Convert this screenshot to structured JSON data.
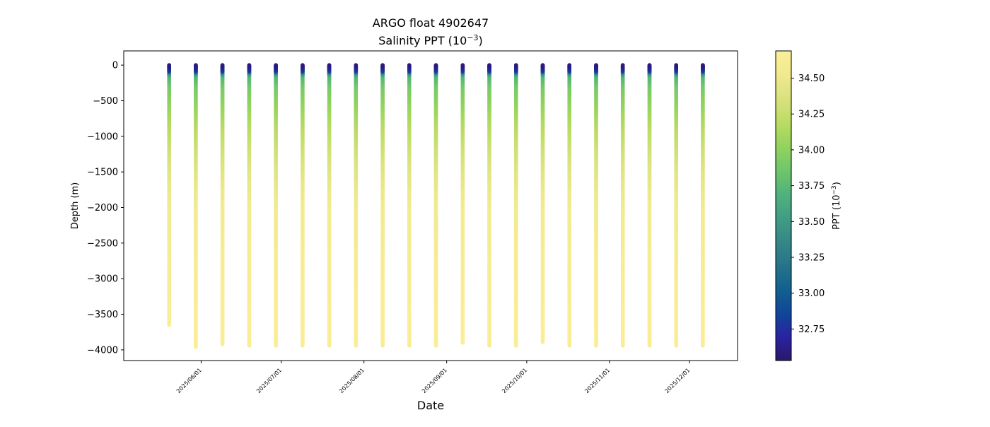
{
  "chart_data": {
    "type": "scatter",
    "title": "ARGO float 4902647",
    "subtitle_prefix": "Salinity PPT (10",
    "subtitle_exp": "−3",
    "subtitle_suffix": ")",
    "xlabel": "Date",
    "ylabel": "Depth (m)",
    "ylim": [
      -4150,
      200
    ],
    "yticks": [
      0,
      -500,
      -1000,
      -1500,
      -2000,
      -2500,
      -3000,
      -3500,
      -4000
    ],
    "ytick_labels": [
      "0",
      "−500",
      "−1000",
      "−1500",
      "−2000",
      "−2500",
      "−3000",
      "−3500",
      "−4000"
    ],
    "xlim": [
      "2025-05-03",
      "2025-12-19"
    ],
    "xticks": [
      "2025-06-01",
      "2025-07-01",
      "2025-08-01",
      "2025-09-01",
      "2025-10-01",
      "2025-11-01",
      "2025-12-01"
    ],
    "xtick_labels": [
      "2025/06/01",
      "2025/07/01",
      "2025/08/01",
      "2025/09/01",
      "2025/10/01",
      "2025/11/01",
      "2025/12/01"
    ],
    "grid": false,
    "colormap": "haline",
    "profiles": [
      {
        "date": "2025-05-20",
        "max_depth": -3650
      },
      {
        "date": "2025-05-30",
        "max_depth": -3960
      },
      {
        "date": "2025-06-09",
        "max_depth": -3920
      },
      {
        "date": "2025-06-19",
        "max_depth": -3940
      },
      {
        "date": "2025-06-29",
        "max_depth": -3940
      },
      {
        "date": "2025-07-09",
        "max_depth": -3940
      },
      {
        "date": "2025-07-19",
        "max_depth": -3940
      },
      {
        "date": "2025-07-29",
        "max_depth": -3940
      },
      {
        "date": "2025-08-08",
        "max_depth": -3940
      },
      {
        "date": "2025-08-18",
        "max_depth": -3940
      },
      {
        "date": "2025-08-28",
        "max_depth": -3940
      },
      {
        "date": "2025-09-07",
        "max_depth": -3900
      },
      {
        "date": "2025-09-17",
        "max_depth": -3940
      },
      {
        "date": "2025-09-27",
        "max_depth": -3940
      },
      {
        "date": "2025-10-07",
        "max_depth": -3890
      },
      {
        "date": "2025-10-17",
        "max_depth": -3940
      },
      {
        "date": "2025-10-27",
        "max_depth": -3940
      },
      {
        "date": "2025-11-06",
        "max_depth": -3940
      },
      {
        "date": "2025-11-16",
        "max_depth": -3940
      },
      {
        "date": "2025-11-26",
        "max_depth": -3940
      },
      {
        "date": "2025-12-06",
        "max_depth": -3940
      }
    ],
    "salinity_profile": {
      "depth": [
        0,
        -20,
        -50,
        -80,
        -110,
        -150,
        -300,
        -500,
        -800,
        -1200,
        -1600,
        -2000,
        -3000,
        -4000
      ],
      "salinity": [
        32.58,
        32.62,
        32.7,
        32.85,
        33.4,
        33.7,
        33.9,
        34.0,
        34.15,
        34.32,
        34.45,
        34.55,
        34.62,
        34.66
      ]
    },
    "colorbar": {
      "label_prefix": "PPT (10",
      "label_exp": "−3",
      "label_suffix": ")",
      "vmin": 32.53,
      "vmax": 34.69,
      "ticks": [
        32.75,
        33.0,
        33.25,
        33.5,
        33.75,
        34.0,
        34.25,
        34.5
      ],
      "tick_labels": [
        "32.75",
        "33.00",
        "33.25",
        "33.50",
        "33.75",
        "34.00",
        "34.25",
        "34.50"
      ],
      "colors": [
        "#29186b",
        "#2a23a0",
        "#0f4799",
        "#12618d",
        "#26748a",
        "#358888",
        "#419d85",
        "#51b27c",
        "#6fc66b",
        "#93d35e",
        "#bbdc65",
        "#d9e27d",
        "#f0ea8e",
        "#fdee99"
      ]
    }
  }
}
